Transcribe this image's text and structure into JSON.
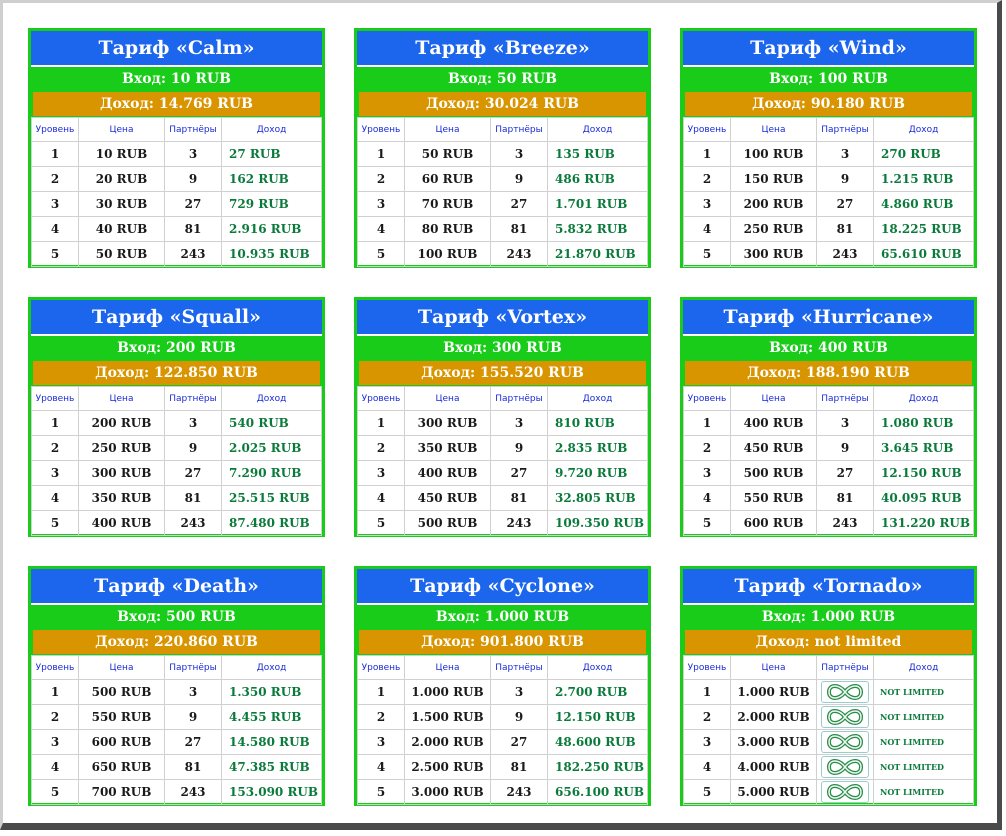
{
  "headers": {
    "level": "Уровень",
    "price": "Цена",
    "partners": "Партнёры",
    "income": "Доход"
  },
  "cards": [
    {
      "title": "Тариф «Calm»",
      "entry": "Вход: 10 RUB",
      "income": "Доход: 14.769 RUB",
      "rows": [
        [
          "1",
          "10 RUB",
          "3",
          "27 RUB"
        ],
        [
          "2",
          "20 RUB",
          "9",
          "162 RUB"
        ],
        [
          "3",
          "30 RUB",
          "27",
          "729 RUB"
        ],
        [
          "4",
          "40 RUB",
          "81",
          "2.916 RUB"
        ],
        [
          "5",
          "50 RUB",
          "243",
          "10.935 RUB"
        ]
      ]
    },
    {
      "title": "Тариф «Breeze»",
      "entry": "Вход: 50 RUB",
      "income": "Доход: 30.024 RUB",
      "rows": [
        [
          "1",
          "50 RUB",
          "3",
          "135 RUB"
        ],
        [
          "2",
          "60 RUB",
          "9",
          "486 RUB"
        ],
        [
          "3",
          "70 RUB",
          "27",
          "1.701 RUB"
        ],
        [
          "4",
          "80 RUB",
          "81",
          "5.832 RUB"
        ],
        [
          "5",
          "100 RUB",
          "243",
          "21.870 RUB"
        ]
      ]
    },
    {
      "title": "Тариф «Wind»",
      "entry": "Вход: 100 RUB",
      "income": "Доход: 90.180 RUB",
      "rows": [
        [
          "1",
          "100 RUB",
          "3",
          "270 RUB"
        ],
        [
          "2",
          "150 RUB",
          "9",
          "1.215 RUB"
        ],
        [
          "3",
          "200 RUB",
          "27",
          "4.860 RUB"
        ],
        [
          "4",
          "250 RUB",
          "81",
          "18.225 RUB"
        ],
        [
          "5",
          "300 RUB",
          "243",
          "65.610 RUB"
        ]
      ]
    },
    {
      "title": "Тариф «Squall»",
      "entry": "Вход: 200 RUB",
      "income": "Доход: 122.850 RUB",
      "rows": [
        [
          "1",
          "200 RUB",
          "3",
          "540 RUB"
        ],
        [
          "2",
          "250 RUB",
          "9",
          "2.025 RUB"
        ],
        [
          "3",
          "300 RUB",
          "27",
          "7.290 RUB"
        ],
        [
          "4",
          "350 RUB",
          "81",
          "25.515 RUB"
        ],
        [
          "5",
          "400 RUB",
          "243",
          "87.480 RUB"
        ]
      ]
    },
    {
      "title": "Тариф «Vortex»",
      "entry": "Вход: 300 RUB",
      "income": "Доход: 155.520 RUB",
      "rows": [
        [
          "1",
          "300 RUB",
          "3",
          "810 RUB"
        ],
        [
          "2",
          "350 RUB",
          "9",
          "2.835 RUB"
        ],
        [
          "3",
          "400 RUB",
          "27",
          "9.720 RUB"
        ],
        [
          "4",
          "450 RUB",
          "81",
          "32.805 RUB"
        ],
        [
          "5",
          "500 RUB",
          "243",
          "109.350 RUB"
        ]
      ]
    },
    {
      "title": "Тариф «Hurricane»",
      "entry": "Вход: 400 RUB",
      "income": "Доход: 188.190 RUB",
      "rows": [
        [
          "1",
          "400 RUB",
          "3",
          "1.080 RUB"
        ],
        [
          "2",
          "450 RUB",
          "9",
          "3.645 RUB"
        ],
        [
          "3",
          "500 RUB",
          "27",
          "12.150 RUB"
        ],
        [
          "4",
          "550 RUB",
          "81",
          "40.095 RUB"
        ],
        [
          "5",
          "600 RUB",
          "243",
          "131.220 RUB"
        ]
      ]
    },
    {
      "title": "Тариф «Death»",
      "entry": "Вход: 500 RUB",
      "income": "Доход: 220.860 RUB",
      "rows": [
        [
          "1",
          "500 RUB",
          "3",
          "1.350 RUB"
        ],
        [
          "2",
          "550 RUB",
          "9",
          "4.455 RUB"
        ],
        [
          "3",
          "600 RUB",
          "27",
          "14.580 RUB"
        ],
        [
          "4",
          "650 RUB",
          "81",
          "47.385 RUB"
        ],
        [
          "5",
          "700 RUB",
          "243",
          "153.090 RUB"
        ]
      ]
    },
    {
      "title": "Тариф «Cyclone»",
      "entry": "Вход: 1.000 RUB",
      "income": "Доход: 901.800 RUB",
      "rows": [
        [
          "1",
          "1.000 RUB",
          "3",
          "2.700 RUB"
        ],
        [
          "2",
          "1.500 RUB",
          "9",
          "12.150 RUB"
        ],
        [
          "3",
          "2.000 RUB",
          "27",
          "48.600 RUB"
        ],
        [
          "4",
          "2.500 RUB",
          "81",
          "182.250 RUB"
        ],
        [
          "5",
          "3.000 RUB",
          "243",
          "656.100 RUB"
        ]
      ]
    },
    {
      "title": "Тариф «Tornado»",
      "entry": "Вход: 1.000 RUB",
      "income": "Доход: not limited",
      "rows": [
        [
          "1",
          "1.000 RUB",
          "infinity-icon",
          "NOT LIMITED"
        ],
        [
          "2",
          "2.000 RUB",
          "infinity-icon",
          "NOT LIMITED"
        ],
        [
          "3",
          "3.000 RUB",
          "infinity-icon",
          "NOT LIMITED"
        ],
        [
          "4",
          "4.000 RUB",
          "infinity-icon",
          "NOT LIMITED"
        ],
        [
          "5",
          "5.000 RUB",
          "infinity-icon",
          "NOT LIMITED"
        ]
      ]
    }
  ],
  "colors": {
    "title_bg": "#1c66ee",
    "entry_bg": "#19cc19",
    "income_bg": "#d99500",
    "income_text": "#0a7a3a",
    "header_text": "#1a2bd6"
  }
}
